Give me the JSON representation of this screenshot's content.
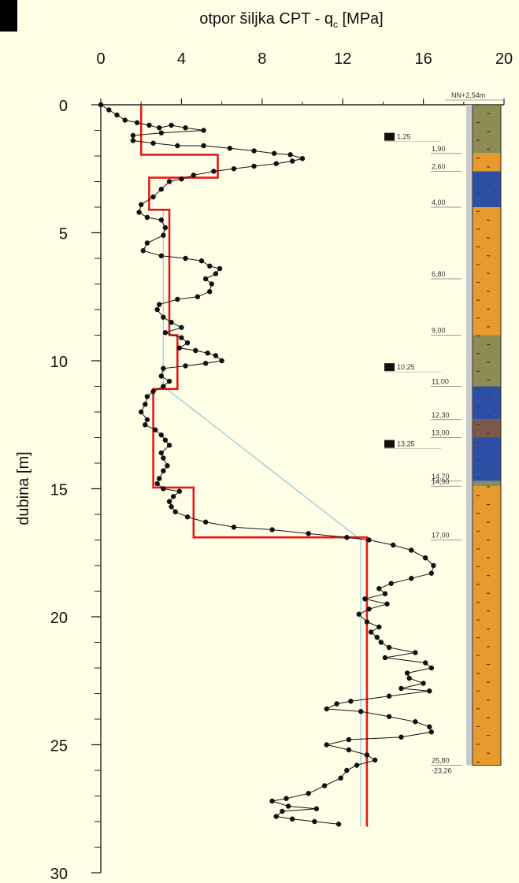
{
  "chart_data": {
    "type": "line",
    "title": "otpor šiljka CPT - q",
    "title_subscript": "c",
    "title_suffix": " [MPa]",
    "xlabel": "otpor šiljka CPT - qc [MPa]",
    "ylabel": "dubina [m]",
    "xlim": [
      0,
      20
    ],
    "ylim": [
      0,
      30
    ],
    "x_axis_position": "top",
    "y_axis_inverted": true,
    "x_ticks": [
      0,
      4,
      8,
      12,
      16,
      20
    ],
    "y_ticks": [
      0,
      5,
      10,
      15,
      20,
      25,
      30
    ],
    "grid": false,
    "series": [
      {
        "color": "#111111",
        "marker": "circle",
        "values": [
          [
            0.0,
            0.0
          ],
          [
            0.4,
            0.2
          ],
          [
            0.8,
            0.4
          ],
          [
            1.2,
            0.6
          ],
          [
            1.8,
            0.7
          ],
          [
            2.4,
            0.8
          ],
          [
            2.9,
            0.9
          ],
          [
            3.5,
            0.8
          ],
          [
            4.2,
            0.9
          ],
          [
            5.1,
            1.0
          ],
          [
            3.0,
            1.1
          ],
          [
            1.6,
            1.2
          ],
          [
            1.6,
            1.4
          ],
          [
            2.6,
            1.5
          ],
          [
            3.8,
            1.6
          ],
          [
            5.1,
            1.6
          ],
          [
            6.4,
            1.7
          ],
          [
            7.6,
            1.8
          ],
          [
            8.6,
            1.9
          ],
          [
            9.4,
            1.95
          ],
          [
            10.0,
            2.1
          ],
          [
            9.5,
            2.2
          ],
          [
            8.7,
            2.3
          ],
          [
            7.6,
            2.4
          ],
          [
            6.6,
            2.5
          ],
          [
            5.6,
            2.6
          ],
          [
            4.6,
            2.75
          ],
          [
            4.0,
            2.9
          ],
          [
            3.4,
            3.0
          ],
          [
            3.0,
            3.3
          ],
          [
            2.6,
            3.6
          ],
          [
            2.0,
            3.9
          ],
          [
            1.9,
            4.2
          ],
          [
            2.3,
            4.4
          ],
          [
            3.0,
            4.5
          ],
          [
            3.2,
            4.8
          ],
          [
            3.1,
            5.1
          ],
          [
            2.3,
            5.4
          ],
          [
            2.1,
            5.7
          ],
          [
            3.0,
            5.9
          ],
          [
            4.2,
            6.0
          ],
          [
            5.0,
            6.1
          ],
          [
            5.4,
            6.3
          ],
          [
            5.9,
            6.4
          ],
          [
            5.7,
            6.6
          ],
          [
            5.2,
            6.8
          ],
          [
            5.5,
            7.0
          ],
          [
            5.4,
            7.3
          ],
          [
            4.8,
            7.5
          ],
          [
            3.8,
            7.6
          ],
          [
            2.9,
            7.8
          ],
          [
            2.8,
            8.0
          ],
          [
            3.1,
            8.3
          ],
          [
            3.5,
            8.5
          ],
          [
            4.0,
            8.7
          ],
          [
            3.2,
            8.9
          ],
          [
            4.0,
            9.1
          ],
          [
            4.3,
            9.3
          ],
          [
            3.9,
            9.5
          ],
          [
            4.7,
            9.6
          ],
          [
            5.3,
            9.7
          ],
          [
            5.7,
            9.8
          ],
          [
            6.0,
            10.0
          ],
          [
            5.2,
            10.1
          ],
          [
            4.2,
            10.2
          ],
          [
            3.1,
            10.3
          ],
          [
            3.0,
            10.6
          ],
          [
            3.4,
            10.8
          ],
          [
            3.1,
            11.0
          ],
          [
            2.6,
            11.2
          ],
          [
            2.3,
            11.4
          ],
          [
            2.2,
            11.7
          ],
          [
            2.0,
            12.0
          ],
          [
            2.3,
            12.3
          ],
          [
            2.2,
            12.5
          ],
          [
            2.7,
            12.7
          ],
          [
            3.0,
            12.9
          ],
          [
            3.2,
            13.1
          ],
          [
            3.4,
            13.3
          ],
          [
            3.0,
            13.6
          ],
          [
            3.1,
            13.8
          ],
          [
            3.3,
            14.1
          ],
          [
            3.1,
            14.3
          ],
          [
            2.9,
            14.6
          ],
          [
            2.8,
            14.8
          ],
          [
            3.1,
            15.0
          ],
          [
            3.9,
            15.1
          ],
          [
            3.6,
            15.3
          ],
          [
            3.4,
            15.5
          ],
          [
            3.5,
            15.7
          ],
          [
            3.7,
            15.9
          ],
          [
            4.3,
            16.1
          ],
          [
            5.2,
            16.3
          ],
          [
            6.6,
            16.5
          ],
          [
            8.5,
            16.6
          ],
          [
            10.3,
            16.75
          ],
          [
            12.2,
            16.9
          ],
          [
            13.3,
            17.0
          ],
          [
            14.5,
            17.2
          ],
          [
            15.4,
            17.4
          ],
          [
            16.1,
            17.7
          ],
          [
            16.5,
            18.0
          ],
          [
            16.4,
            18.3
          ],
          [
            15.4,
            18.5
          ],
          [
            14.4,
            18.7
          ],
          [
            13.8,
            18.9
          ],
          [
            14.1,
            19.1
          ],
          [
            13.1,
            19.3
          ],
          [
            14.2,
            19.5
          ],
          [
            13.3,
            19.7
          ],
          [
            12.8,
            19.9
          ],
          [
            13.2,
            20.2
          ],
          [
            13.8,
            20.4
          ],
          [
            13.4,
            20.6
          ],
          [
            13.7,
            20.8
          ],
          [
            13.9,
            21.0
          ],
          [
            14.3,
            21.2
          ],
          [
            15.6,
            21.4
          ],
          [
            14.1,
            21.6
          ],
          [
            16.1,
            21.8
          ],
          [
            16.4,
            22.0
          ],
          [
            15.2,
            22.2
          ],
          [
            15.3,
            22.4
          ],
          [
            16.0,
            22.6
          ],
          [
            14.9,
            22.8
          ],
          [
            16.3,
            22.9
          ],
          [
            14.3,
            23.1
          ],
          [
            12.4,
            23.3
          ],
          [
            11.7,
            23.4
          ],
          [
            11.2,
            23.6
          ],
          [
            12.9,
            23.7
          ],
          [
            14.3,
            23.9
          ],
          [
            15.6,
            24.1
          ],
          [
            16.3,
            24.3
          ],
          [
            16.4,
            24.5
          ],
          [
            14.9,
            24.7
          ],
          [
            12.3,
            24.8
          ],
          [
            11.2,
            25.0
          ],
          [
            12.3,
            25.2
          ],
          [
            13.2,
            25.4
          ],
          [
            13.6,
            25.6
          ],
          [
            12.7,
            25.8
          ],
          [
            12.2,
            26.0
          ],
          [
            11.9,
            26.3
          ],
          [
            11.1,
            26.6
          ],
          [
            10.3,
            26.9
          ],
          [
            9.2,
            27.1
          ],
          [
            8.5,
            27.2
          ],
          [
            9.3,
            27.4
          ],
          [
            10.7,
            27.5
          ],
          [
            9.0,
            27.6
          ],
          [
            8.7,
            27.8
          ],
          [
            9.5,
            27.9
          ],
          [
            10.6,
            28.0
          ],
          [
            11.8,
            28.1
          ]
        ]
      },
      {
        "color": "#e81818",
        "marker": "none",
        "values": [
          [
            2.0,
            0.0
          ],
          [
            2.0,
            1.95
          ],
          [
            5.8,
            1.95
          ],
          [
            5.8,
            2.85
          ],
          [
            2.4,
            2.85
          ],
          [
            2.4,
            4.1
          ],
          [
            3.4,
            4.1
          ],
          [
            3.4,
            9.0
          ],
          [
            3.8,
            9.0
          ],
          [
            3.8,
            11.1
          ],
          [
            2.6,
            11.1
          ],
          [
            2.6,
            14.95
          ],
          [
            4.6,
            14.95
          ],
          [
            4.6,
            16.9
          ],
          [
            13.2,
            16.9
          ],
          [
            13.2,
            28.2
          ]
        ]
      },
      {
        "color": "#a8cde0",
        "marker": "none",
        "values": [
          [
            3.1,
            4.1
          ],
          [
            3.1,
            11.0
          ],
          [
            12.9,
            17.0
          ],
          [
            12.9,
            28.2
          ]
        ]
      }
    ],
    "samples": [
      {
        "depth": 1.25,
        "label": "1,25"
      },
      {
        "depth": 10.25,
        "label": "10,25"
      },
      {
        "depth": 13.25,
        "label": "13,25"
      }
    ],
    "log": {
      "top_label": "NN+2,54m",
      "bottom_extra_label": "-23,26",
      "layers": [
        {
          "from": 0.0,
          "to": 1.9,
          "label": "1,90",
          "color": "#8c8c54"
        },
        {
          "from": 1.9,
          "to": 2.6,
          "label": "2,60",
          "color": "#e99a2f"
        },
        {
          "from": 2.6,
          "to": 4.0,
          "label": "4,00",
          "color": "#2d4fa6"
        },
        {
          "from": 4.0,
          "to": 6.8,
          "label": "6,80",
          "color": "#e99a2f"
        },
        {
          "from": 6.8,
          "to": 9.0,
          "label": "9,00",
          "color": "#e99a2f"
        },
        {
          "from": 9.0,
          "to": 11.0,
          "label": "11,00",
          "color": "#8c8c54"
        },
        {
          "from": 11.0,
          "to": 12.3,
          "label": "12,30",
          "color": "#2d4fa6"
        },
        {
          "from": 12.3,
          "to": 13.0,
          "label": "13,00",
          "color": "#7a5a48"
        },
        {
          "from": 13.0,
          "to": 14.7,
          "label": "14,70",
          "color": "#2d4fa6"
        },
        {
          "from": 14.7,
          "to": 14.9,
          "label": "14,90",
          "color": "#8c8c54"
        },
        {
          "from": 14.9,
          "to": 17.0,
          "label": "17,00",
          "color": "#e99a2f"
        },
        {
          "from": 17.0,
          "to": 25.8,
          "label": "25,80",
          "color": "#e99a2f"
        }
      ]
    }
  }
}
